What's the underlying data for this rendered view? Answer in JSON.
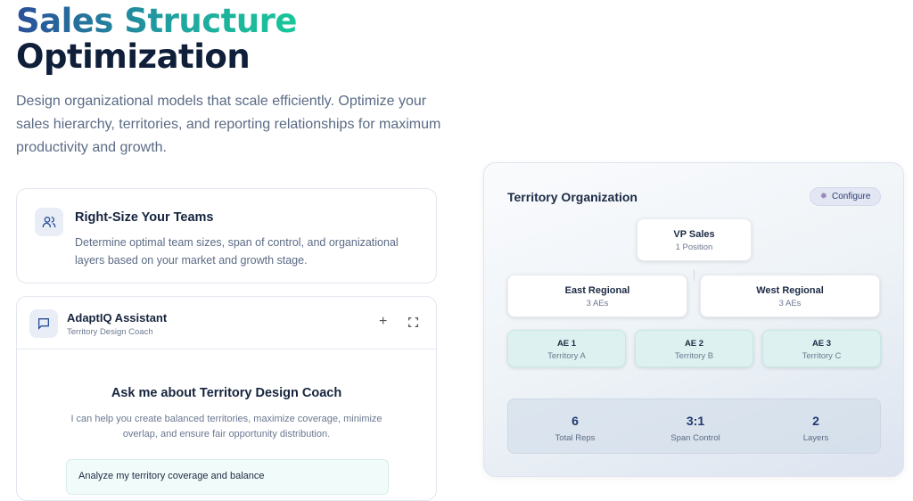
{
  "hero": {
    "title_line1": "Sales Structure",
    "title_line2": "Optimization",
    "description": "Design organizational models that scale efficiently. Optimize your sales hierarchy, territories, and reporting relationships for maximum productivity and growth."
  },
  "feature": {
    "title": "Right-Size Your Teams",
    "text": "Determine optimal team sizes, span of control, and organizational layers based on your market and growth stage.",
    "icon": "users-icon"
  },
  "assistant": {
    "name": "AdaptIQ Assistant",
    "subtitle": "Territory Design Coach",
    "heading": "Ask me about Territory Design Coach",
    "intro": "I can help you create balanced territories, maximize coverage, minimize overlap, and ensure fair opportunity distribution.",
    "suggestion": "Analyze my territory coverage and balance",
    "new_label": "+"
  },
  "panel": {
    "title": "Territory Organization",
    "configure_label": "Configure",
    "vp": {
      "name": "VP Sales",
      "sub": "1 Position"
    },
    "regions": [
      {
        "name": "East Regional",
        "sub": "3 AEs"
      },
      {
        "name": "West Regional",
        "sub": "3 AEs"
      }
    ],
    "aes": [
      {
        "name": "AE 1",
        "sub": "Territory A"
      },
      {
        "name": "AE 2",
        "sub": "Territory B"
      },
      {
        "name": "AE 3",
        "sub": "Territory C"
      }
    ],
    "stats": [
      {
        "value": "6",
        "label": "Total Reps"
      },
      {
        "value": "3:1",
        "label": "Span Control"
      },
      {
        "value": "2",
        "label": "Layers"
      }
    ]
  },
  "colors": {
    "accent_blue": "#2a4f9a",
    "accent_teal": "#18c79a",
    "ae_fill": "#ddf2f0"
  }
}
